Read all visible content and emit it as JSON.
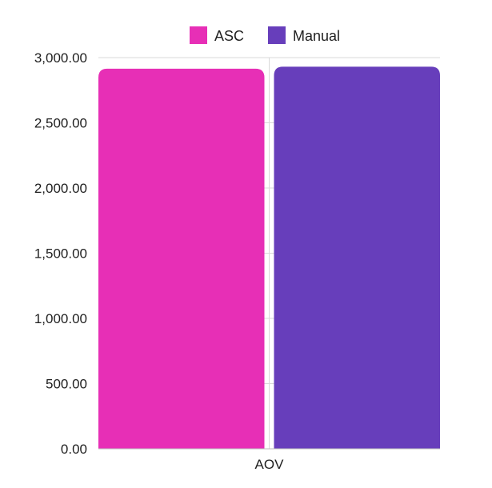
{
  "chart_data": {
    "type": "bar",
    "categories": [
      "AOV"
    ],
    "series": [
      {
        "name": "ASC",
        "values": [
          2915
        ],
        "color": "#E72FB6"
      },
      {
        "name": "Manual",
        "values": [
          2930
        ],
        "color": "#673EBB"
      }
    ],
    "ylim": [
      0,
      3000
    ],
    "yticks": [
      0,
      500,
      1000,
      1500,
      2000,
      2500,
      3000
    ],
    "ytick_labels": [
      "0.00",
      "500.00",
      "1,000.00",
      "1,500.00",
      "2,000.00",
      "2,500.00",
      "3,000.00"
    ],
    "grid": true,
    "legend_position": "top-center",
    "title": "",
    "xlabel": "",
    "ylabel": ""
  },
  "colors": {
    "grid": "#d9d9d9",
    "axis": "#bdbdbd"
  }
}
